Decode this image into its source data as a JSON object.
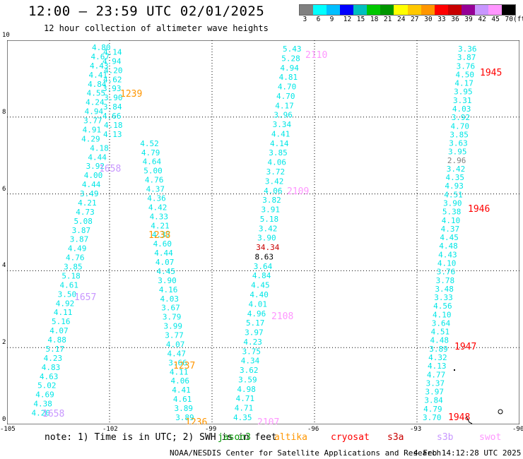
{
  "title": "12:00 – 23:59 UTC 02/01/2025",
  "subtitle": "12 hour collection of altimeter wave heights",
  "legend": {
    "colors": [
      "#808080",
      "#00ffff",
      "#00bfff",
      "#0000ff",
      "#00bfbf",
      "#00c800",
      "#009600",
      "#ffff00",
      "#ffc800",
      "#ff9600",
      "#ff0000",
      "#c80000",
      "#960096",
      "#c896ff",
      "#ff96ff",
      "#000000"
    ],
    "labels": [
      "3",
      "6",
      "9",
      "12",
      "15",
      "18",
      "21",
      "24",
      "27",
      "30",
      "33",
      "36",
      "39",
      "42",
      "45",
      "70"
    ],
    "unit": "(ft)"
  },
  "axes": {
    "x_ticks": [
      "-105",
      "-102",
      "-99",
      "-96",
      "-93",
      "-90"
    ],
    "y_ticks": [
      "0",
      "2",
      "4",
      "6",
      "8",
      "10"
    ]
  },
  "tracks": [
    {
      "id": "track1",
      "values": [
        "4.80",
        "4.14",
        "4.67",
        "4.94",
        "4.43",
        "4.20",
        "4.41",
        "4.62",
        "4.84",
        "3.93",
        "4.55",
        "3.90",
        "4.24",
        "3.84",
        "4.94",
        "4.66",
        "3.77",
        "4.18",
        "4.91",
        "4.13",
        "4.29",
        "4.52",
        "4.18",
        "4.79",
        "4.44",
        "4.64",
        "3.92",
        "5.00",
        "4.00",
        "4.76",
        "4.44",
        "4.37",
        "3.49",
        "4.36",
        "4.21",
        "4.42",
        "4.73",
        "4.33",
        "5.08",
        "4.21",
        "3.87",
        "4.37",
        "3.87",
        "4.60",
        "4.49",
        "4.44",
        "4.76",
        "4.07",
        "3.85",
        "4.45",
        "5.18",
        "3.90",
        "4.61",
        "4.16",
        "3.50",
        "4.03",
        "4.92",
        "3.67",
        "4.11",
        "3.79",
        "5.16",
        "3.99",
        "4.07",
        "3.77",
        "4.88",
        "4.07",
        "5.17",
        "4.47",
        "4.23",
        "3.66",
        "4.83",
        "4.11",
        "4.63",
        "4.06",
        "5.02",
        "4.41",
        "4.69",
        "4.61",
        "4.38",
        "3.89",
        "4.20",
        "3.89"
      ]
    },
    {
      "id": "track2",
      "values": [
        "5.43",
        "5.28",
        "4.94",
        "4.81",
        "4.70",
        "4.70",
        "4.17",
        "3.96",
        "3.34",
        "4.41",
        "4.14",
        "3.85",
        "4.06",
        "3.72",
        "3.42",
        "4.06",
        "3.82",
        "3.91",
        "5.18",
        "3.42",
        "3.90",
        "34.34",
        "8.63",
        "3.64",
        "4.84",
        "4.45",
        "4.40",
        "4.01",
        "4.96",
        "5.17",
        "3.97",
        "4.23",
        "3.75",
        "4.34",
        "3.62",
        "3.59",
        "4.98",
        "4.71",
        "4.71",
        "4.35"
      ]
    },
    {
      "id": "track3",
      "values": [
        "3.36",
        "3.87",
        "3.76",
        "4.50",
        "4.17",
        "3.95",
        "3.31",
        "4.03",
        "3.92",
        "4.70",
        "3.85",
        "3.63",
        "3.95",
        "2.96",
        "3.42",
        "4.35",
        "4.93",
        "4.51",
        "3.90",
        "5.38",
        "4.10",
        "4.37",
        "4.45",
        "4.48",
        "4.43",
        "4.10",
        "3.76",
        "3.78",
        "3.48",
        "3.33",
        "4.56",
        "4.10",
        "3.64",
        "4.51",
        "4.48",
        "3.89",
        "4.32",
        "4.13",
        "4.77",
        "3.37",
        "3.97",
        "3.84",
        "4.79",
        "3.70"
      ]
    }
  ],
  "pass_labels": [
    {
      "text": "1239",
      "color": "#ff9600"
    },
    {
      "text": "1658",
      "color": "#c896ff"
    },
    {
      "text": "1238",
      "color": "#ff9600"
    },
    {
      "text": "1657",
      "color": "#c896ff"
    },
    {
      "text": "1237",
      "color": "#ff9600"
    },
    {
      "text": "1658",
      "color": "#c896ff"
    },
    {
      "text": "1236",
      "color": "#ff9600"
    },
    {
      "text": "2110",
      "color": "#ff96ff"
    },
    {
      "text": "2109",
      "color": "#ff96ff"
    },
    {
      "text": "2108",
      "color": "#ff96ff"
    },
    {
      "text": "2107",
      "color": "#ff96ff"
    },
    {
      "text": "1945",
      "color": "#ff0000"
    },
    {
      "text": "1946",
      "color": "#ff0000"
    },
    {
      "text": "1947",
      "color": "#ff0000"
    },
    {
      "text": "1948",
      "color": "#ff0000"
    }
  ],
  "note": {
    "prefix": "note:  1) Time is in UTC; 2) SWH is in feet",
    "missions": [
      {
        "text": "jason3",
        "color": "#009600"
      },
      {
        "text": "altika",
        "color": "#ff9600"
      },
      {
        "text": "cryosat",
        "color": "#ff0000"
      },
      {
        "text": "s3a",
        "color": "#c80000"
      },
      {
        "text": "s3b",
        "color": "#c896ff"
      },
      {
        "text": "swot",
        "color": "#ff96ff"
      }
    ]
  },
  "footer": {
    "credit": "NOAA/NESDIS Center for Satellite Applications and Research",
    "timestamp": "4 Feb 14:12:28 UTC 2025"
  }
}
